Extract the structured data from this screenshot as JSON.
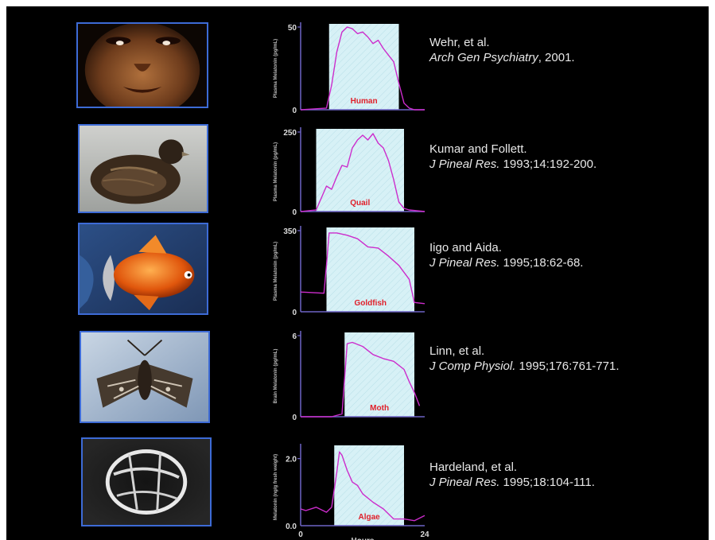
{
  "colors": {
    "background": "#000000",
    "frame": "#3d6bd6",
    "night_band": "#d7f1f6",
    "curve": "#cc2ccc",
    "label": "#e0202a",
    "axis": "#6e64c6",
    "text": "#e8e8e8"
  },
  "shared_x_axis": {
    "label": "Hours",
    "ticks": [
      "0",
      "24"
    ]
  },
  "rows": [
    {
      "id": "human",
      "photo_icon": "human-face-photo",
      "chart": {
        "type": "line",
        "organism_label": "Human",
        "ylabel": "Plasma Melatonin (pg/mL)",
        "y_tick_top": "50",
        "y_tick_bottom": "0",
        "ylim": [
          0,
          50
        ],
        "xlim": [
          0,
          24
        ],
        "night_band": [
          5.5,
          19
        ],
        "x": [
          0,
          5,
          6,
          7,
          8,
          9,
          10,
          11,
          12,
          13,
          14,
          15,
          16,
          17,
          18,
          19,
          20,
          21,
          22,
          24
        ],
        "y": [
          0,
          1,
          15,
          35,
          47,
          50,
          49,
          46,
          47,
          44,
          40,
          42,
          37,
          33,
          29,
          16,
          4,
          1,
          0,
          0
        ]
      },
      "reference": {
        "authors": "Wehr, et al.",
        "journal": "Arch Gen Psychiatry",
        "citation": ", 2001."
      }
    },
    {
      "id": "quail",
      "photo_icon": "quail-photo",
      "chart": {
        "type": "line",
        "organism_label": "Quail",
        "ylabel": "Plasma Melatonin (pg/mL)",
        "y_tick_top": "250",
        "y_tick_bottom": "0",
        "ylim": [
          0,
          250
        ],
        "xlim": [
          0,
          24
        ],
        "night_band": [
          3,
          20
        ],
        "x": [
          0,
          3,
          5,
          6,
          7,
          8,
          9,
          10,
          11,
          12,
          13,
          14,
          15,
          16,
          17,
          18,
          19,
          20,
          21,
          24
        ],
        "y": [
          0,
          5,
          80,
          70,
          110,
          145,
          140,
          200,
          225,
          240,
          225,
          245,
          215,
          200,
          160,
          100,
          30,
          10,
          5,
          0
        ]
      },
      "reference": {
        "authors": "Kumar and Follett.",
        "journal": "J Pineal Res.",
        "citation": " 1993;14:192-200."
      }
    },
    {
      "id": "goldfish",
      "photo_icon": "goldfish-photo",
      "chart": {
        "type": "line",
        "organism_label": "Goldfish",
        "ylabel": "Plasma Melatonin (pg/mL)",
        "y_tick_top": "350",
        "y_tick_bottom": "0",
        "ylim": [
          0,
          350
        ],
        "xlim": [
          0,
          24
        ],
        "night_band": [
          5,
          22
        ],
        "x": [
          0,
          4.5,
          5,
          5.5,
          7,
          9,
          11,
          13,
          15,
          17,
          19,
          21,
          22,
          24
        ],
        "y": [
          85,
          80,
          200,
          340,
          340,
          330,
          315,
          280,
          275,
          240,
          200,
          140,
          40,
          35
        ]
      },
      "reference": {
        "authors": "Iigo and Aida.",
        "journal": "J Pineal Res.",
        "citation": " 1995;18:62-68."
      }
    },
    {
      "id": "moth",
      "photo_icon": "moth-photo",
      "chart": {
        "type": "line",
        "organism_label": "Moth",
        "ylabel": "Brain Melatonin (pg/mL)",
        "y_tick_top": "6",
        "y_tick_bottom": "0",
        "ylim": [
          0,
          6
        ],
        "xlim": [
          0,
          24
        ],
        "night_band": [
          8.5,
          22
        ],
        "x": [
          0,
          6,
          8,
          9,
          10,
          12,
          14,
          16,
          18,
          20,
          21,
          22,
          23
        ],
        "y": [
          0,
          0,
          0.2,
          5.4,
          5.5,
          5.2,
          4.6,
          4.3,
          4.1,
          3.5,
          2.6,
          1.8,
          0.8
        ]
      },
      "reference": {
        "authors": "Linn, et al.",
        "journal": "J Comp Physiol.",
        "citation": " 1995;176:761-771."
      }
    },
    {
      "id": "algae",
      "photo_icon": "algae-cell-photo",
      "chart": {
        "type": "line",
        "organism_label": "Algae",
        "ylabel": "Melatonin (ng/g fresh weight)",
        "y_tick_top": "2.0",
        "y_tick_bottom": "0.0",
        "ylim": [
          0,
          2.3
        ],
        "xlim": [
          0,
          24
        ],
        "night_band": [
          6.5,
          20
        ],
        "x": [
          0,
          1,
          3,
          5,
          6,
          7,
          7.5,
          8,
          9,
          10,
          11,
          12,
          14,
          16,
          18,
          20,
          22,
          24
        ],
        "y": [
          0.5,
          0.45,
          0.55,
          0.4,
          0.55,
          1.6,
          2.2,
          2.1,
          1.65,
          1.3,
          1.2,
          0.95,
          0.7,
          0.5,
          0.2,
          0.2,
          0.15,
          0.3
        ]
      },
      "reference": {
        "authors": "Hardeland, et al.",
        "journal": "J Pineal Res.",
        "citation": " 1995;18:104-111."
      }
    }
  ]
}
